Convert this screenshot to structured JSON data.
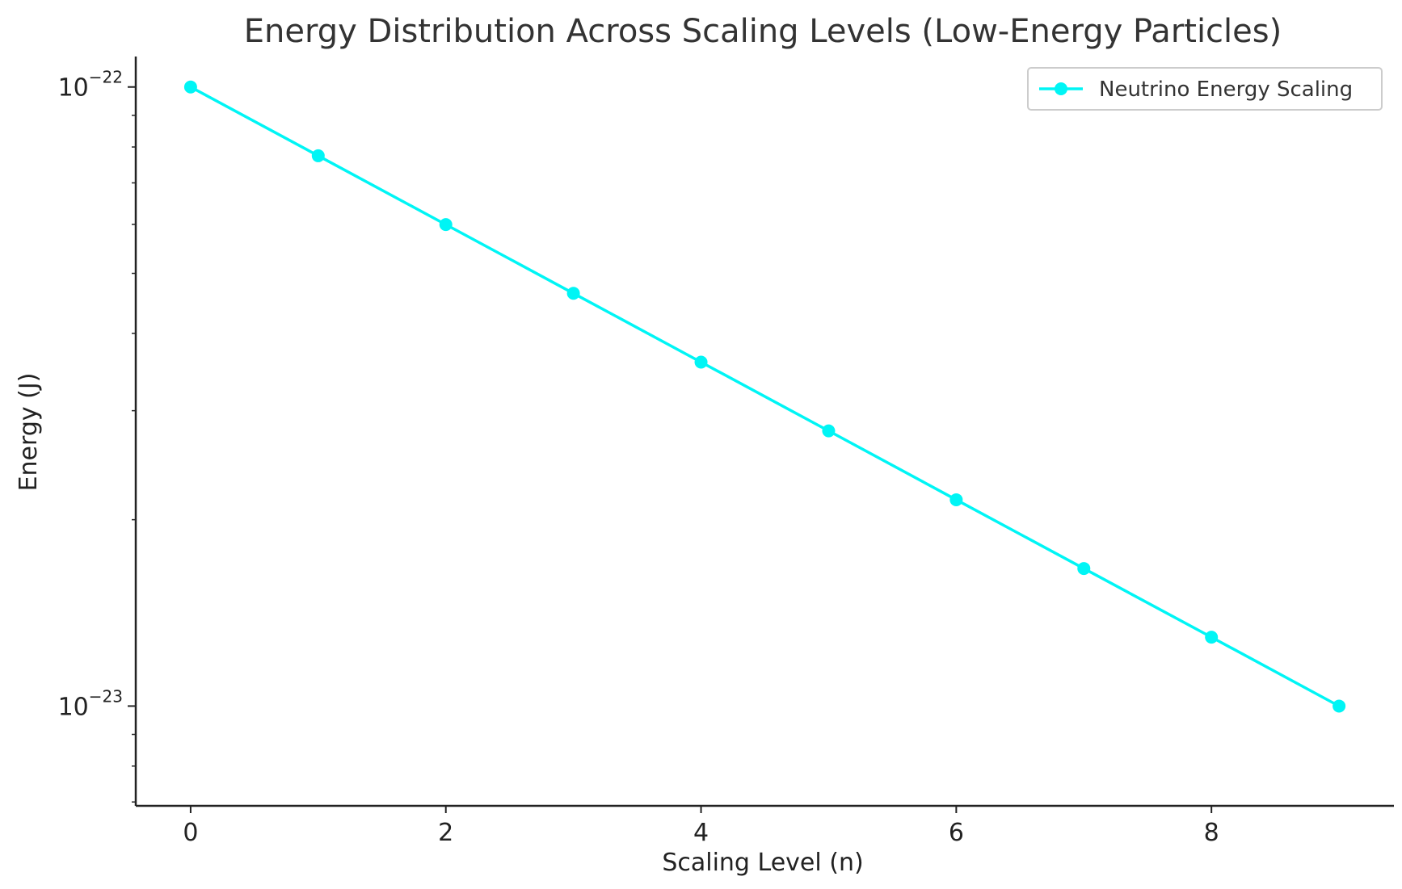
{
  "chart_data": {
    "type": "line",
    "title": "Energy Distribution Across Scaling Levels (Low-Energy Particles)",
    "xlabel": "Scaling Level (n)",
    "ylabel": "Energy (J)",
    "y_scale": "log",
    "xlim": [
      -0.43,
      9.43
    ],
    "ylim": [
      6.9e-24,
      1.12e-22
    ],
    "x_ticks": [
      0,
      2,
      4,
      6,
      8
    ],
    "y_ticks": [
      {
        "value": 1e-22,
        "base": "10",
        "exponent": "−22"
      },
      {
        "value": 1e-23,
        "base": "10",
        "exponent": "−23"
      }
    ],
    "y_minor_ticks": [
      2e-23,
      3e-23,
      4e-23,
      5e-23,
      6e-23,
      7e-23,
      8e-23,
      9e-23,
      8e-24,
      9e-24,
      7e-24
    ],
    "grid": false,
    "legend_position": "top-right",
    "series": [
      {
        "name": "Neutrino Energy Scaling",
        "color": "#00f5f5",
        "marker": "circle",
        "x": [
          0,
          1,
          2,
          3,
          4,
          5,
          6,
          7,
          8,
          9
        ],
        "values": [
          1e-22,
          7.743e-23,
          5.995e-23,
          4.642e-23,
          3.594e-23,
          2.783e-23,
          2.154e-23,
          1.668e-23,
          1.292e-23,
          1e-23
        ]
      }
    ]
  }
}
